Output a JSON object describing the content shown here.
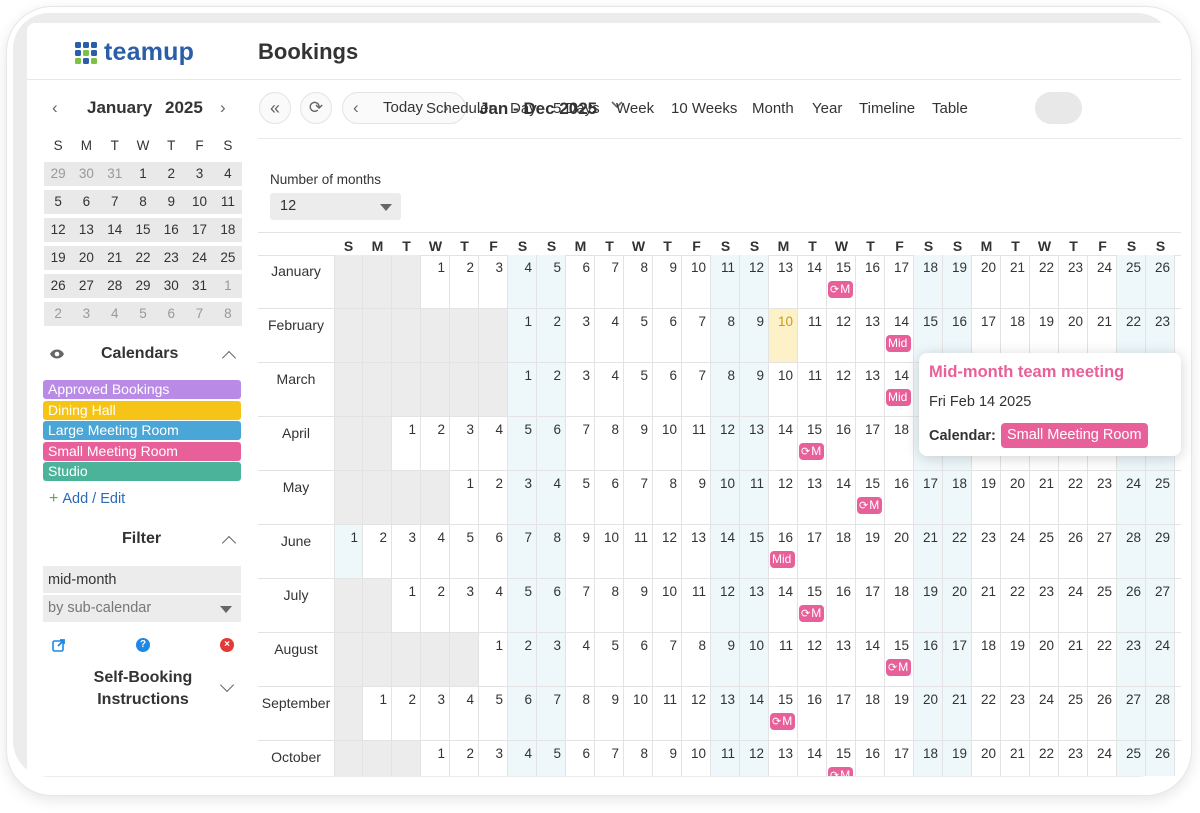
{
  "app": {
    "logo": "teamup",
    "page_title": "Bookings"
  },
  "mini_calendar": {
    "month": "January",
    "year": "2025",
    "weekdays": [
      "S",
      "M",
      "T",
      "W",
      "T",
      "F",
      "S"
    ],
    "weeks": [
      [
        "29",
        "30",
        "31",
        "1",
        "2",
        "3",
        "4"
      ],
      [
        "5",
        "6",
        "7",
        "8",
        "9",
        "10",
        "11"
      ],
      [
        "12",
        "13",
        "14",
        "15",
        "16",
        "17",
        "18"
      ],
      [
        "19",
        "20",
        "21",
        "22",
        "23",
        "24",
        "25"
      ],
      [
        "26",
        "27",
        "28",
        "29",
        "30",
        "31",
        "1"
      ],
      [
        "2",
        "3",
        "4",
        "5",
        "6",
        "7",
        "8"
      ]
    ]
  },
  "calendars": {
    "title": "Calendars",
    "items": [
      {
        "label": "Approved Bookings",
        "color": "#b98ae6"
      },
      {
        "label": "Dining Hall",
        "color": "#f6c416"
      },
      {
        "label": "Large Meeting Room",
        "color": "#4aa6d6"
      },
      {
        "label": "Small Meeting Room",
        "color": "#e8609a"
      },
      {
        "label": "Studio",
        "color": "#4bb39a"
      }
    ],
    "add_edit": "Add / Edit"
  },
  "filter": {
    "title": "Filter",
    "value": "mid-month",
    "select_placeholder": "by sub-calendar"
  },
  "self_booking": {
    "title": "Self-Booking Instructions"
  },
  "toolbar": {
    "today": "Today",
    "date_range": "Jan - Dec 2025",
    "views": [
      "Scheduler",
      "Day",
      "5 Days",
      "Week",
      "10 Weeks",
      "Month",
      "Year",
      "Timeline",
      "Table"
    ],
    "active_view": "Year"
  },
  "months_setting": {
    "label": "Number of months",
    "value": "12"
  },
  "year_view": {
    "weekday_header": [
      "S",
      "M",
      "T",
      "W",
      "T",
      "F",
      "S",
      "S",
      "M",
      "T",
      "W",
      "T",
      "F",
      "S",
      "S",
      "M",
      "T",
      "W",
      "T",
      "F",
      "S",
      "S",
      "M",
      "T",
      "W",
      "T",
      "F",
      "S",
      "S",
      "M"
    ],
    "months": [
      {
        "name": "January",
        "offset": 3,
        "days": 31
      },
      {
        "name": "February",
        "offset": 6,
        "days": 28
      },
      {
        "name": "March",
        "offset": 6,
        "days": 31
      },
      {
        "name": "April",
        "offset": 2,
        "days": 30
      },
      {
        "name": "May",
        "offset": 4,
        "days": 31
      },
      {
        "name": "June",
        "offset": 0,
        "days": 30
      },
      {
        "name": "July",
        "offset": 2,
        "days": 31
      },
      {
        "name": "August",
        "offset": 5,
        "days": 31
      },
      {
        "name": "September",
        "offset": 1,
        "days": 30
      },
      {
        "name": "October",
        "offset": 3,
        "days": 31
      }
    ],
    "today": {
      "month": 1,
      "day": 10
    },
    "events": [
      {
        "month": 0,
        "day": 15,
        "label": "Mid-month team meeting",
        "short": "M",
        "recurring": true
      },
      {
        "month": 1,
        "day": 14,
        "label": "Mid",
        "short": "Mid",
        "recurring": false
      },
      {
        "month": 2,
        "day": 14,
        "label": "Mid",
        "short": "Mid",
        "recurring": false
      },
      {
        "month": 3,
        "day": 15,
        "label": "Mid-month team meeting",
        "short": "M",
        "recurring": true
      },
      {
        "month": 4,
        "day": 15,
        "label": "Mid-month team meeting",
        "short": "M",
        "recurring": true
      },
      {
        "month": 5,
        "day": 16,
        "label": "Mid",
        "short": "Mid",
        "recurring": false
      },
      {
        "month": 6,
        "day": 15,
        "label": "Mid-month team meeting",
        "short": "M",
        "recurring": true
      },
      {
        "month": 7,
        "day": 15,
        "label": "Mid-month team meeting",
        "short": "M",
        "recurring": true
      },
      {
        "month": 8,
        "day": 15,
        "label": "Mid-month team meeting",
        "short": "M",
        "recurring": true
      },
      {
        "month": 9,
        "day": 15,
        "label": "Mid-month team meeting",
        "short": "M",
        "recurring": true
      }
    ]
  },
  "popup": {
    "title": "Mid-month team meeting",
    "date": "Fri Feb 14 2025",
    "calendar_label": "Calendar:",
    "calendar_value": "Small Meeting Room"
  }
}
